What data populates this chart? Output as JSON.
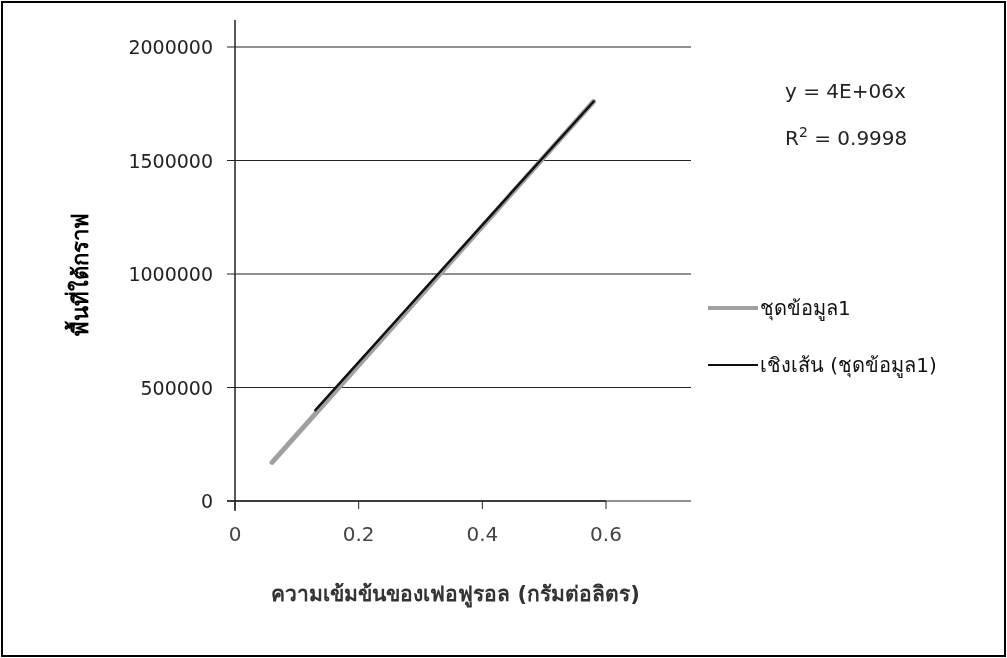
{
  "chart_data": {
    "type": "line",
    "xlabel": "ความเข้มข้นของเฟอฟูรอล (กรัมต่อลิตร)",
    "ylabel": "พื้นที่ใต้กราฟ",
    "xlim": [
      0,
      0.6
    ],
    "xticks": [
      0,
      0.2,
      0.4,
      0.6
    ],
    "ylim": [
      0,
      2000000
    ],
    "yticks": [
      0,
      500000,
      1000000,
      1500000,
      2000000
    ],
    "grid": "y",
    "legend": "right",
    "marker": "none",
    "series": [
      {
        "name": "ชุดข้อมูล1",
        "color": "#a0a0a0",
        "x": [
          0.06,
          0.58
        ],
        "values": [
          170000,
          1760000
        ]
      },
      {
        "name": "เชิงเส้น (ชุดข้อมูล1)",
        "color": "#111111",
        "x": [
          0.13,
          0.58
        ],
        "values": [
          400000,
          1760000
        ]
      }
    ],
    "annotations": [
      "y = 4E+06x",
      "R$^{2}$ = 0.9998"
    ]
  }
}
